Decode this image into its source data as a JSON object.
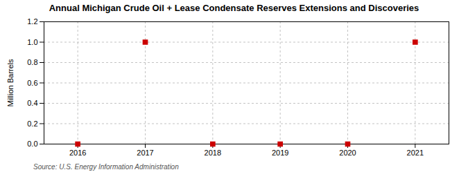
{
  "chart_data": {
    "type": "scatter",
    "title": "Annual Michigan Crude Oil + Lease Condensate Reserves Extensions and Discoveries",
    "ylabel": "Million Barrels",
    "annotations": [
      "Source: U.S. Energy Information Administration"
    ],
    "x": [
      2016,
      2017,
      2018,
      2019,
      2020,
      2021
    ],
    "values": [
      0.0,
      1.0,
      0.0,
      0.0,
      0.0,
      1.0
    ],
    "xlim": [
      2015.5,
      2021.5
    ],
    "xticks": [
      2016,
      2017,
      2018,
      2019,
      2020,
      2021
    ],
    "ylim": [
      0.0,
      1.2
    ],
    "yticks": [
      {
        "value": 0.0,
        "label": "0.0"
      },
      0.2,
      0.4,
      0.6,
      0.8,
      {
        "value": 1.0,
        "label": "1.0"
      },
      1.2
    ],
    "color": "#cc0000",
    "marker": "square",
    "grid": true
  }
}
